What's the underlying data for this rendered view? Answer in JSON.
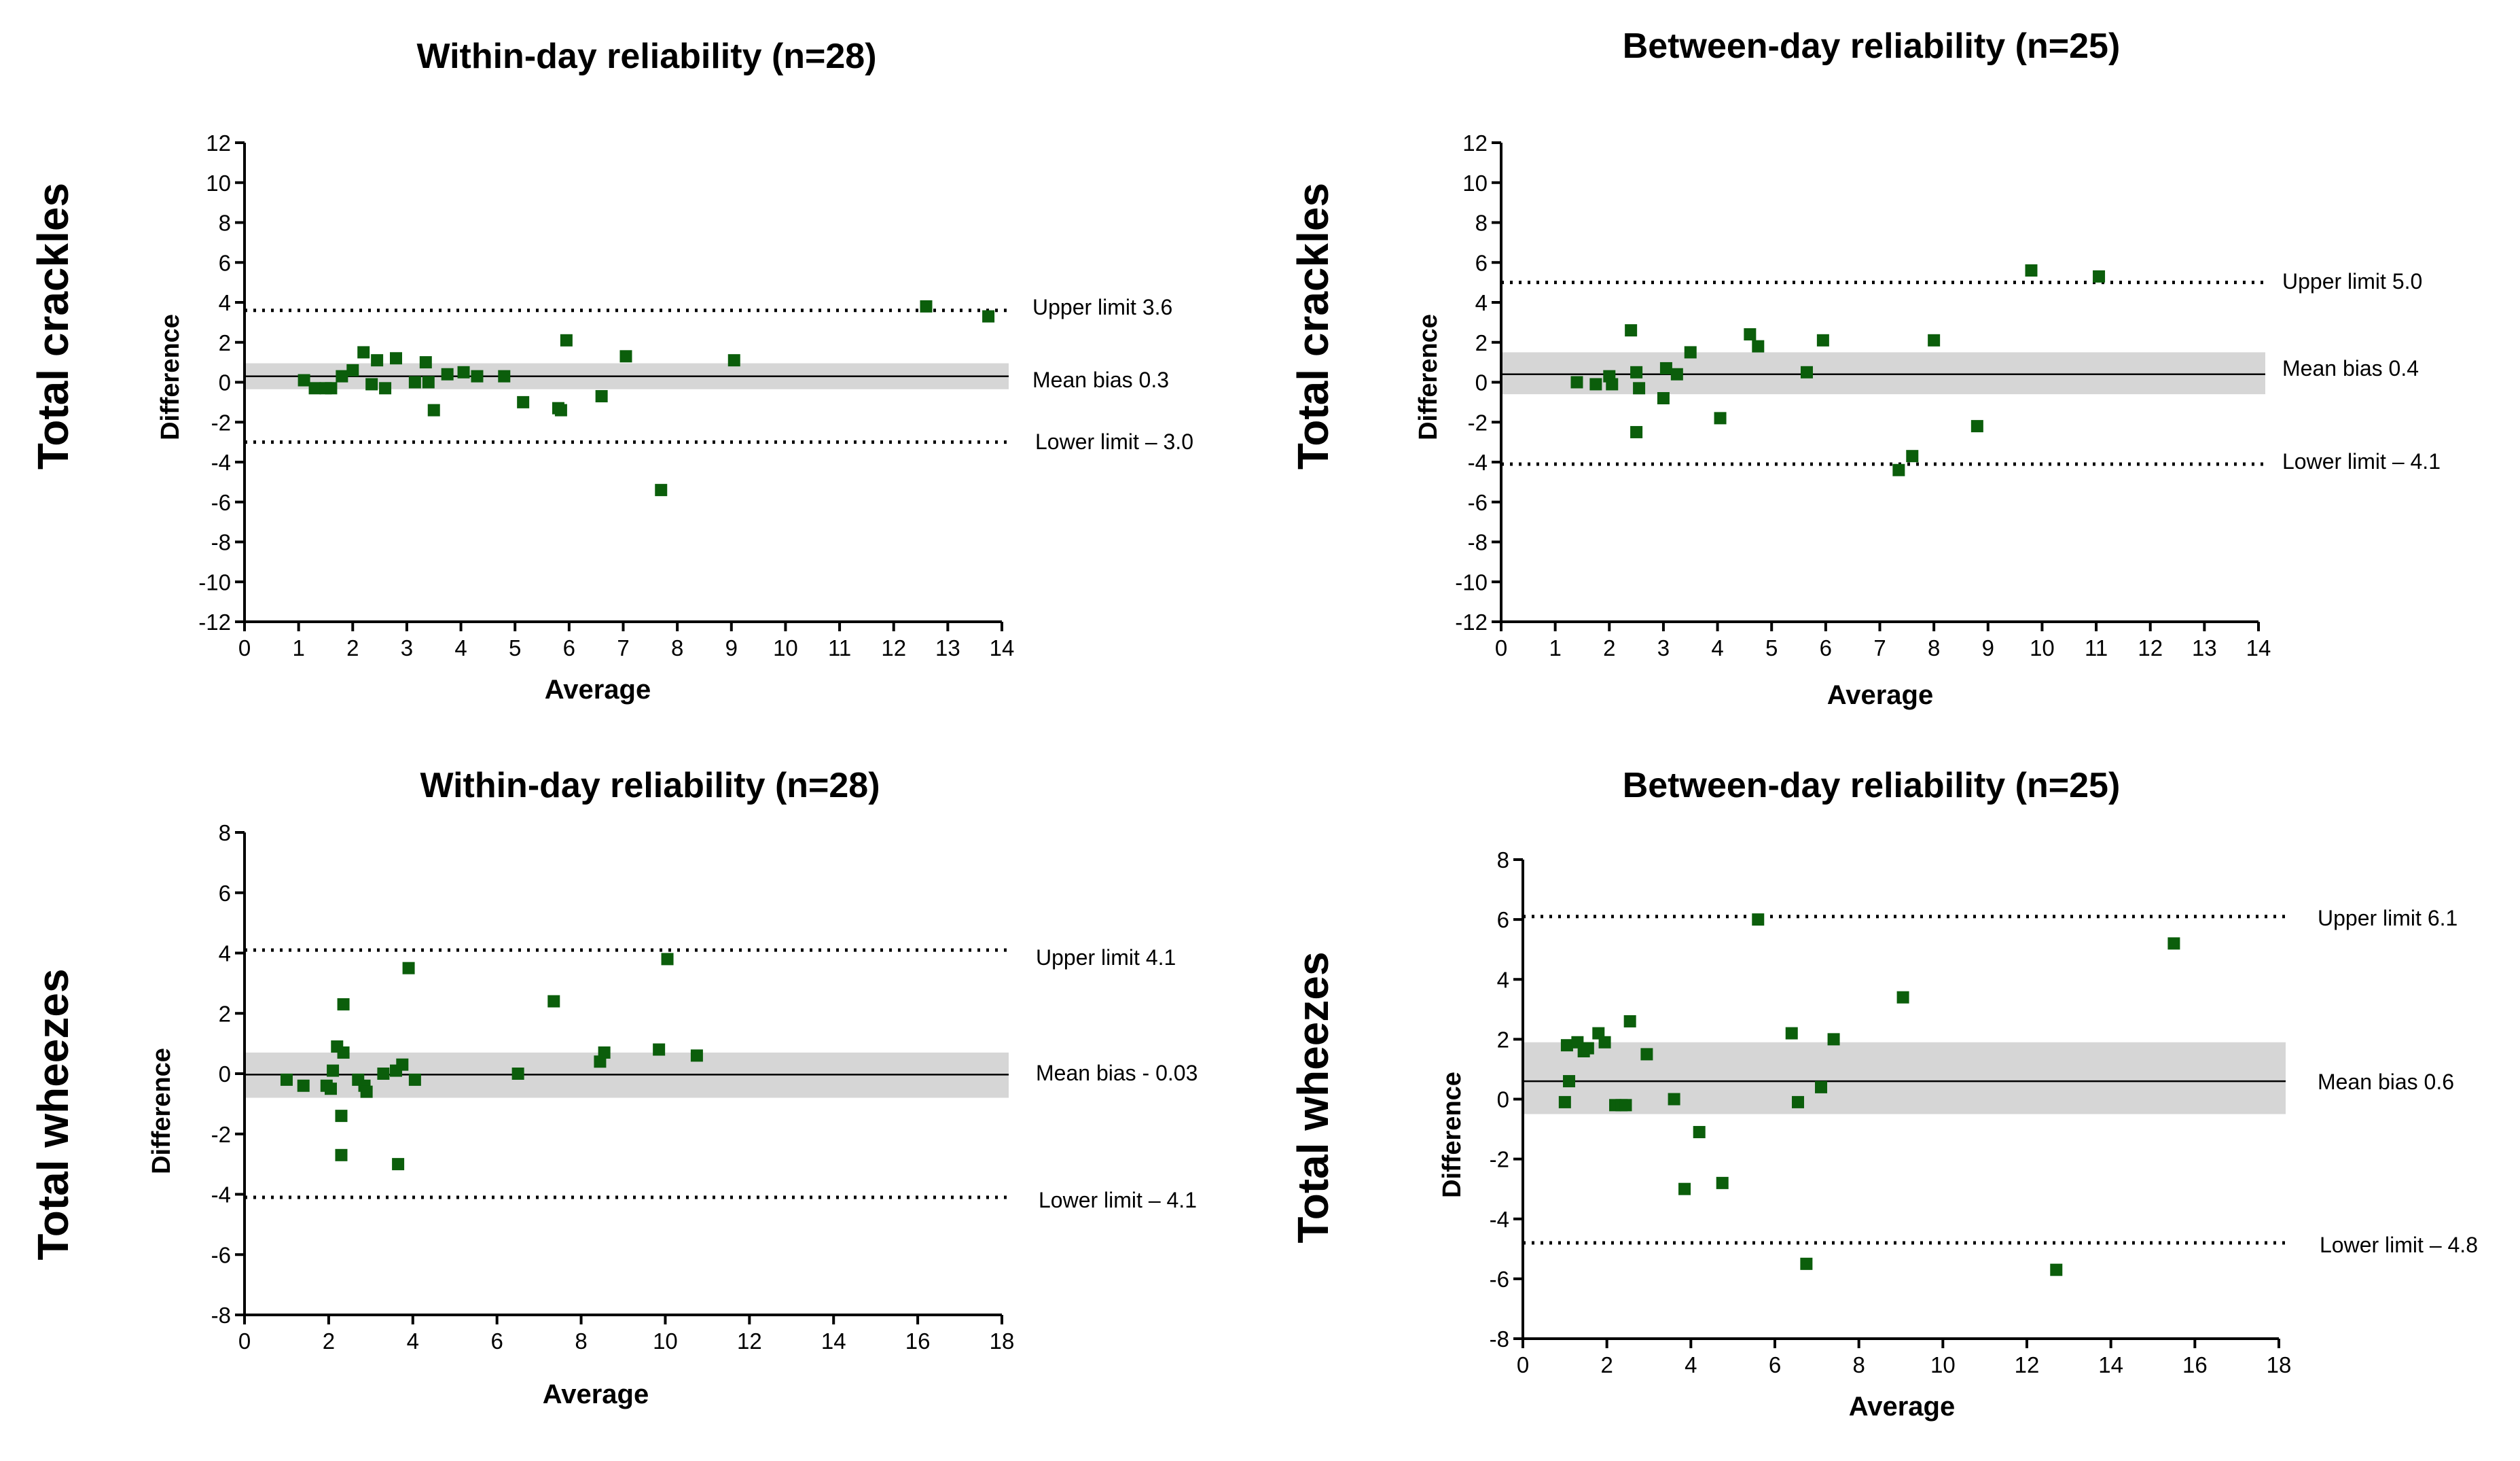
{
  "colors": {
    "points": "#0b5e0b",
    "band": "#d6d6d6"
  },
  "chart_data": [
    {
      "type": "scatter",
      "title": "Within-day reliability (n=28)",
      "row_label": "Total crackles",
      "xlabel": "Average",
      "ylabel": "Difference",
      "xlim": [
        0,
        14
      ],
      "ylim": [
        -12,
        12
      ],
      "xticks": [
        0,
        1,
        2,
        3,
        4,
        5,
        6,
        7,
        8,
        9,
        10,
        11,
        12,
        13,
        14
      ],
      "yticks": [
        12,
        10,
        8,
        6,
        4,
        2,
        0,
        -2,
        -4,
        -6,
        -8,
        -10,
        -12
      ],
      "mean_bias": 0.3,
      "band": [
        -0.35,
        0.95
      ],
      "upper_limit": 3.6,
      "lower_limit": -3.0,
      "annotations": {
        "upper": "Upper limit  3.6",
        "mean": "Mean bias  0.3",
        "lower": "Lower limit – 3.0"
      },
      "points": [
        [
          1.1,
          0.1
        ],
        [
          1.3,
          -0.3
        ],
        [
          1.5,
          -0.3
        ],
        [
          1.6,
          -0.3
        ],
        [
          1.8,
          0.3
        ],
        [
          2.0,
          0.6
        ],
        [
          2.2,
          1.5
        ],
        [
          2.35,
          -0.1
        ],
        [
          2.45,
          1.1
        ],
        [
          2.6,
          -0.3
        ],
        [
          2.8,
          1.2
        ],
        [
          3.15,
          0.0
        ],
        [
          3.35,
          1.0
        ],
        [
          3.4,
          0.0
        ],
        [
          3.5,
          -1.4
        ],
        [
          3.75,
          0.4
        ],
        [
          4.05,
          0.5
        ],
        [
          4.3,
          0.3
        ],
        [
          4.8,
          0.3
        ],
        [
          5.15,
          -1.0
        ],
        [
          5.8,
          -1.3
        ],
        [
          5.85,
          -1.4
        ],
        [
          5.95,
          2.1
        ],
        [
          6.6,
          -0.7
        ],
        [
          7.05,
          1.3
        ],
        [
          7.7,
          -5.4
        ],
        [
          9.05,
          1.1
        ],
        [
          12.6,
          3.8
        ],
        [
          13.75,
          3.3
        ]
      ]
    },
    {
      "type": "scatter",
      "title": "Between-day reliability (n=25)",
      "row_label": "Total crackles",
      "xlabel": "Average",
      "ylabel": "Difference",
      "xlim": [
        0,
        14
      ],
      "ylim": [
        -12,
        12
      ],
      "xticks": [
        0,
        1,
        2,
        3,
        4,
        5,
        6,
        7,
        8,
        9,
        10,
        11,
        12,
        13,
        14
      ],
      "yticks": [
        12,
        10,
        8,
        6,
        4,
        2,
        0,
        -2,
        -4,
        -6,
        -8,
        -10,
        -12
      ],
      "mean_bias": 0.4,
      "band": [
        -0.6,
        1.5
      ],
      "upper_limit": 5.0,
      "lower_limit": -4.1,
      "annotations": {
        "upper": "Upper limit  5.0",
        "mean": "Mean bias  0.4",
        "lower": "Lower limit –  4.1"
      },
      "points": [
        [
          1.4,
          0.0
        ],
        [
          1.75,
          -0.1
        ],
        [
          2.0,
          0.3
        ],
        [
          2.05,
          -0.1
        ],
        [
          2.4,
          2.6
        ],
        [
          2.5,
          -2.5
        ],
        [
          2.5,
          0.5
        ],
        [
          2.55,
          -0.3
        ],
        [
          3.0,
          -0.8
        ],
        [
          3.05,
          0.7
        ],
        [
          3.25,
          0.4
        ],
        [
          3.5,
          1.5
        ],
        [
          4.05,
          -1.8
        ],
        [
          4.6,
          2.4
        ],
        [
          4.75,
          1.8
        ],
        [
          5.65,
          0.5
        ],
        [
          5.95,
          2.1
        ],
        [
          7.35,
          -4.4
        ],
        [
          7.6,
          -3.7
        ],
        [
          8.0,
          2.1
        ],
        [
          8.8,
          -2.2
        ],
        [
          9.8,
          5.6
        ],
        [
          11.05,
          5.3
        ]
      ]
    },
    {
      "type": "scatter",
      "title": "Within-day reliability (n=28)",
      "row_label": "Total wheezes",
      "xlabel": "Average",
      "ylabel": "Difference",
      "xlim": [
        0,
        18
      ],
      "ylim": [
        -8,
        8
      ],
      "xticks": [
        0,
        2,
        4,
        6,
        8,
        10,
        12,
        14,
        16,
        18
      ],
      "yticks": [
        8,
        6,
        4,
        2,
        0,
        -2,
        -4,
        -6,
        -8
      ],
      "mean_bias": -0.03,
      "band": [
        -0.8,
        0.7
      ],
      "upper_limit": 4.1,
      "lower_limit": -4.1,
      "annotations": {
        "upper": "Upper limit  4.1",
        "mean": "Mean bias  -  0.03",
        "lower": "Lower limit – 4.1"
      },
      "points": [
        [
          1.0,
          -0.2
        ],
        [
          1.4,
          -0.4
        ],
        [
          1.95,
          -0.4
        ],
        [
          2.05,
          -0.5
        ],
        [
          2.1,
          0.1
        ],
        [
          2.2,
          0.9
        ],
        [
          2.3,
          -1.4
        ],
        [
          2.3,
          -2.7
        ],
        [
          2.35,
          2.3
        ],
        [
          2.35,
          0.7
        ],
        [
          2.7,
          -0.2
        ],
        [
          2.85,
          -0.4
        ],
        [
          2.9,
          -0.6
        ],
        [
          3.3,
          0.0
        ],
        [
          3.6,
          0.1
        ],
        [
          3.65,
          -3.0
        ],
        [
          3.75,
          0.3
        ],
        [
          3.9,
          3.5
        ],
        [
          4.05,
          -0.2
        ],
        [
          6.5,
          0.0
        ],
        [
          7.35,
          2.4
        ],
        [
          8.45,
          0.4
        ],
        [
          8.55,
          0.7
        ],
        [
          9.85,
          0.8
        ],
        [
          10.05,
          3.8
        ],
        [
          10.75,
          0.6
        ]
      ]
    },
    {
      "type": "scatter",
      "title": "Between-day reliability (n=25)",
      "row_label": "Total wheezes",
      "xlabel": "Average",
      "ylabel": "Difference",
      "xlim": [
        0,
        18
      ],
      "ylim": [
        -8,
        8
      ],
      "xticks": [
        0,
        2,
        4,
        6,
        8,
        10,
        12,
        14,
        16,
        18
      ],
      "yticks": [
        8,
        6,
        4,
        2,
        0,
        -2,
        -4,
        -6,
        -8
      ],
      "mean_bias": 0.6,
      "band": [
        -0.5,
        1.9
      ],
      "upper_limit": 6.1,
      "lower_limit": -4.8,
      "annotations": {
        "upper": "Upper limit  6.1",
        "mean": "Mean bias  0.6",
        "lower": "Lower limit  – 4.8"
      },
      "points": [
        [
          1.0,
          -0.1
        ],
        [
          1.05,
          1.8
        ],
        [
          1.1,
          0.6
        ],
        [
          1.3,
          1.9
        ],
        [
          1.45,
          1.6
        ],
        [
          1.55,
          1.7
        ],
        [
          1.8,
          2.2
        ],
        [
          1.95,
          1.9
        ],
        [
          2.2,
          -0.2
        ],
        [
          2.35,
          -0.2
        ],
        [
          2.45,
          -0.2
        ],
        [
          2.55,
          2.6
        ],
        [
          2.95,
          1.5
        ],
        [
          3.6,
          0.0
        ],
        [
          3.85,
          -3.0
        ],
        [
          4.2,
          -1.1
        ],
        [
          4.75,
          -2.8
        ],
        [
          5.6,
          6.0
        ],
        [
          6.4,
          2.2
        ],
        [
          6.55,
          -0.1
        ],
        [
          6.75,
          -5.5
        ],
        [
          7.1,
          0.4
        ],
        [
          7.4,
          2.0
        ],
        [
          9.05,
          3.4
        ],
        [
          12.7,
          -5.7
        ],
        [
          15.5,
          5.2
        ]
      ]
    }
  ]
}
